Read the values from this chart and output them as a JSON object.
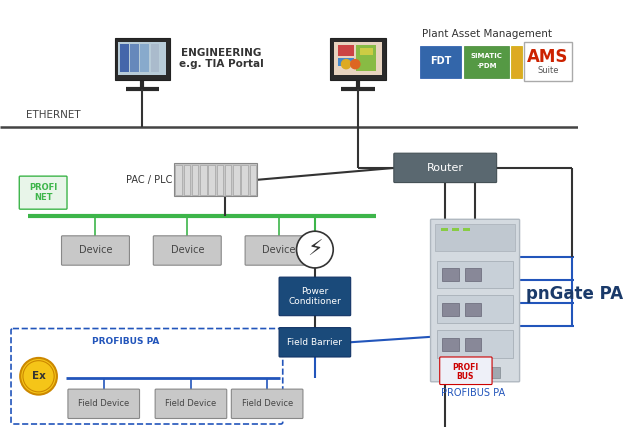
{
  "bg_color": "#ffffff",
  "green": "#3db54a",
  "dark_blue": "#1a3a6a",
  "wire_gray": "#333333",
  "box_gray": "#c0c0c0",
  "router_color": "#5a6870",
  "blue_box": "#1a4a7a",
  "profibus_blue": "#1e3a8a",
  "ethernet_label": "ETHERNET",
  "pac_label": "PAC / PLC",
  "router_label": "Router",
  "power_cond_label": "Power\nConditioner",
  "field_barrier_label": "Field Barrier",
  "device_label": "Device",
  "field_device_label": "Field Device",
  "pngate_label": "pnGate PA",
  "profibus_pa_label": "PROFIBUS PA",
  "profinet_label": "PROFI\nNET",
  "engineering_label": "ENGINEERING\ne.g. TIA Portal",
  "plant_asset_label": "Plant Asset Management"
}
